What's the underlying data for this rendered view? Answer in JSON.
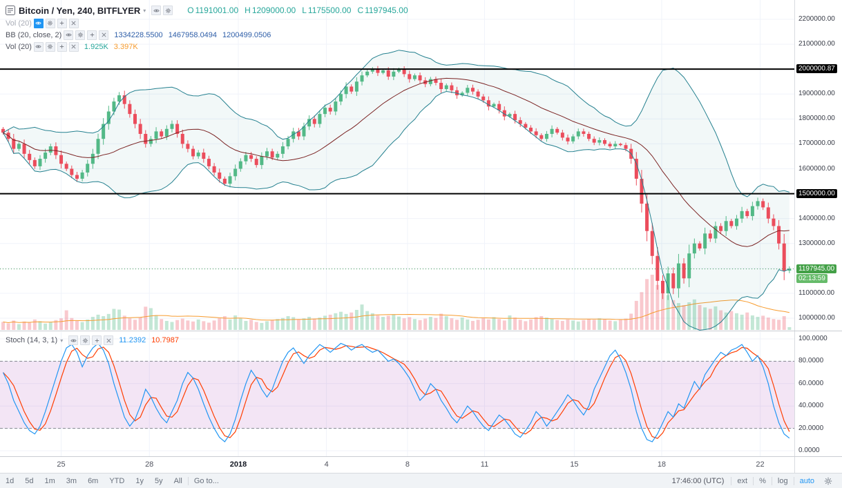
{
  "header": {
    "symbol": "Bitcoin / Yen, 240, BITFLYER",
    "ohlc": [
      {
        "k": "O",
        "v": "1191001.00"
      },
      {
        "k": "H",
        "v": "1209000.00"
      },
      {
        "k": "L",
        "v": "1175500.00"
      },
      {
        "k": "C",
        "v": "1197945.00"
      }
    ]
  },
  "indicators": [
    {
      "label": "Vol (20)",
      "values": []
    },
    {
      "label": "BB (20, close, 2)",
      "values": [
        "1334228.5500",
        "1467958.0494",
        "1200499.0506"
      ]
    },
    {
      "label": "Vol (20)",
      "values": [
        "1.925K",
        "3.397K"
      ]
    }
  ],
  "stoch_legend": {
    "label": "Stoch (14, 3, 1)",
    "values": [
      "11.2392",
      "10.7987"
    ]
  },
  "toolbar": {
    "ranges": [
      "1d",
      "5d",
      "1m",
      "3m",
      "6m",
      "YTD",
      "1y",
      "5y",
      "All"
    ],
    "goto": "Go to...",
    "clock": "17:46:00 (UTC)",
    "ext": "ext",
    "percent": "%",
    "log": "log",
    "auto": "auto"
  },
  "chart_data": {
    "type": "candlestick",
    "title": "Bitcoin / Yen, 240, BITFLYER",
    "interval_minutes": 240,
    "last_price": 1197945,
    "levels": [
      2000000.87,
      1500000
    ],
    "price_axis": {
      "labels": [
        {
          "text": "2200000.00",
          "value": 2200000
        },
        {
          "text": "2100000.00",
          "value": 2100000
        },
        {
          "text": "1900000.00",
          "value": 1900000
        },
        {
          "text": "1800000.00",
          "value": 1800000
        },
        {
          "text": "1700000.00",
          "value": 1700000
        },
        {
          "text": "1600000.00",
          "value": 1600000
        },
        {
          "text": "1400000.00",
          "value": 1400000
        },
        {
          "text": "1300000.00",
          "value": 1300000
        },
        {
          "text": "1100000.00",
          "value": 1100000
        },
        {
          "text": "1000000.00",
          "value": 1000000
        }
      ],
      "badges": [
        {
          "text": "2000000.87",
          "value": 2000000.87
        },
        {
          "text": "1500000.00",
          "value": 1500000
        }
      ],
      "last_badge": "1197945.00",
      "countdown": "02:13:59",
      "min_visible": 952900,
      "max_visible": 2277700
    },
    "stoch_axis": [
      {
        "text": "100.0000",
        "value": 100
      },
      {
        "text": "80.0000",
        "value": 80
      },
      {
        "text": "60.0000",
        "value": 60
      },
      {
        "text": "40.0000",
        "value": 40
      },
      {
        "text": "20.0000",
        "value": 20
      },
      {
        "text": "0.0000",
        "value": 0
      }
    ],
    "stoch_bands": [
      80,
      20
    ],
    "x_ticks": [
      {
        "label": "25",
        "pos": 0.077
      },
      {
        "label": "28",
        "pos": 0.188
      },
      {
        "label": "2018",
        "pos": 0.3,
        "major": true
      },
      {
        "label": "4",
        "pos": 0.411
      },
      {
        "label": "8",
        "pos": 0.513
      },
      {
        "label": "11",
        "pos": 0.61
      },
      {
        "label": "15",
        "pos": 0.723
      },
      {
        "label": "18",
        "pos": 0.833
      },
      {
        "label": "22",
        "pos": 0.957
      }
    ],
    "closes": [
      1745000,
      1720000,
      1680000,
      1700000,
      1660000,
      1635000,
      1610000,
      1640000,
      1665000,
      1690000,
      1655000,
      1620000,
      1600000,
      1575000,
      1560000,
      1585000,
      1620000,
      1660000,
      1720000,
      1780000,
      1830000,
      1870000,
      1895000,
      1860000,
      1820000,
      1780000,
      1740000,
      1700000,
      1720000,
      1750000,
      1730000,
      1760000,
      1780000,
      1740000,
      1700000,
      1680000,
      1650000,
      1665000,
      1640000,
      1610000,
      1585000,
      1560000,
      1540000,
      1570000,
      1600000,
      1630000,
      1655000,
      1640000,
      1615000,
      1650000,
      1670000,
      1645000,
      1660000,
      1690000,
      1720000,
      1750000,
      1730000,
      1770000,
      1800000,
      1780000,
      1820000,
      1845000,
      1830000,
      1870000,
      1900000,
      1930000,
      1910000,
      1950000,
      1975000,
      1990000,
      2000000,
      1985000,
      1995000,
      1970000,
      1990000,
      2000000,
      1980000,
      1960000,
      1975000,
      1955000,
      1940000,
      1960000,
      1945000,
      1920000,
      1935000,
      1915000,
      1895000,
      1905000,
      1925000,
      1910000,
      1890000,
      1875000,
      1850000,
      1860000,
      1835000,
      1810000,
      1820000,
      1795000,
      1780000,
      1765000,
      1750000,
      1735000,
      1720000,
      1740000,
      1760000,
      1745000,
      1725000,
      1710000,
      1730000,
      1750000,
      1740000,
      1720000,
      1705000,
      1715000,
      1700000,
      1690000,
      1700000,
      1695000,
      1680000,
      1640000,
      1560000,
      1460000,
      1350000,
      1250000,
      1150000,
      1100000,
      1180000,
      1120000,
      1220000,
      1160000,
      1260000,
      1300000,
      1280000,
      1340000,
      1320000,
      1370000,
      1350000,
      1390000,
      1370000,
      1400000,
      1430000,
      1410000,
      1450000,
      1470000,
      1445000,
      1400000,
      1370000,
      1300000,
      1191001,
      1197945
    ],
    "volumes_k": [
      5.5,
      4.5,
      6.5,
      4.0,
      5.8,
      5.0,
      7.2,
      6.0,
      4.4,
      5.2,
      6.8,
      8.0,
      13.5,
      8.2,
      6.2,
      5.4,
      7.2,
      9.0,
      10.5,
      9.5,
      11.0,
      14.5,
      14.0,
      9.8,
      8.0,
      7.0,
      8.5,
      16.0,
      15.0,
      10.2,
      7.5,
      6.2,
      5.5,
      6.8,
      7.8,
      6.5,
      5.8,
      7.2,
      6.0,
      5.0,
      6.5,
      8.0,
      9.5,
      7.2,
      10.0,
      7.8,
      6.2,
      7.0,
      5.5,
      4.8,
      6.0,
      6.8,
      7.5,
      8.2,
      9.5,
      8.8,
      7.2,
      8.0,
      9.0,
      7.8,
      8.5,
      9.8,
      10.5,
      11.5,
      12.5,
      11.0,
      12.0,
      13.8,
      17.5,
      13.0,
      11.5,
      10.0,
      9.0,
      9.8,
      10.8,
      9.2,
      8.0,
      8.8,
      7.5,
      6.8,
      7.8,
      9.0,
      8.2,
      11.2,
      9.5,
      8.0,
      7.0,
      8.5,
      7.2,
      6.2,
      7.0,
      8.0,
      7.2,
      8.8,
      7.5,
      6.5,
      10.0,
      8.5,
      7.0,
      6.0,
      7.2,
      8.8,
      9.5,
      8.5,
      7.5,
      6.8,
      6.2,
      7.2,
      6.5,
      5.8,
      6.8,
      7.5,
      7.0,
      8.0,
      7.2,
      6.5,
      6.0,
      7.0,
      7.8,
      11.2,
      20.0,
      26.0,
      35.0,
      38.0,
      31.0,
      27.0,
      24.0,
      20.5,
      18.5,
      17.0,
      19.0,
      21.0,
      17.2,
      15.5,
      14.5,
      16.2,
      13.5,
      12.0,
      13.0,
      11.5,
      10.5,
      12.0,
      10.0,
      9.0,
      9.8,
      8.5,
      7.5,
      7.0,
      9.5,
      1.925
    ],
    "stoch_k": [
      70,
      60,
      45,
      35,
      25,
      18,
      15,
      22,
      35,
      50,
      65,
      80,
      92,
      95,
      88,
      75,
      85,
      92,
      96,
      90,
      78,
      60,
      45,
      30,
      22,
      28,
      40,
      55,
      48,
      38,
      30,
      25,
      35,
      45,
      60,
      70,
      65,
      55,
      42,
      30,
      20,
      12,
      8,
      15,
      28,
      45,
      60,
      72,
      65,
      55,
      48,
      55,
      68,
      80,
      88,
      92,
      85,
      78,
      85,
      90,
      95,
      92,
      88,
      92,
      96,
      94,
      90,
      93,
      95,
      91,
      88,
      90,
      85,
      80,
      82,
      78,
      72,
      65,
      55,
      45,
      50,
      60,
      55,
      45,
      38,
      30,
      25,
      32,
      40,
      35,
      28,
      22,
      18,
      25,
      32,
      28,
      22,
      15,
      12,
      18,
      25,
      35,
      30,
      22,
      28,
      35,
      42,
      50,
      45,
      38,
      32,
      40,
      55,
      65,
      75,
      85,
      90,
      82,
      70,
      55,
      35,
      20,
      10,
      8,
      15,
      25,
      35,
      30,
      42,
      38,
      50,
      62,
      55,
      68,
      75,
      82,
      88,
      85,
      90,
      92,
      95,
      88,
      80,
      85,
      75,
      60,
      40,
      25,
      15,
      11.2392
    ],
    "stoch_last": {
      "k": 11.2392,
      "d": 10.7987
    },
    "colors": {
      "up": "#53b987",
      "down": "#eb4d5c",
      "bb_band": "#24808f",
      "bb_basis": "#7a2222",
      "vol_ma": "#f79b2d",
      "stoch_k": "#2196f3",
      "stoch_d": "#ff3d00",
      "last_line": "#3d9a50",
      "last_badge": "#43a047",
      "countdown_badge": "#66bb6a",
      "level_line": "#000000",
      "stoch_band_fill": "rgba(156,39,176,0.12)"
    }
  }
}
